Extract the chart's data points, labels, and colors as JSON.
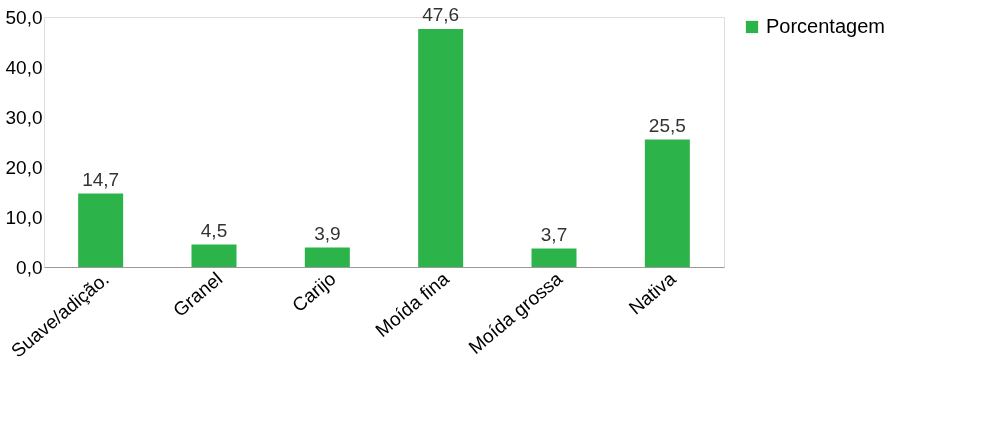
{
  "chart_data": {
    "type": "bar",
    "categories": [
      "Suave/adição.",
      "Granel",
      "Carijo",
      "Moída fina",
      "Moída grossa",
      "Nativa"
    ],
    "series": [
      {
        "name": "Porcentagem",
        "color": "#2cb34a",
        "values": [
          14.7,
          4.5,
          3.9,
          47.6,
          3.7,
          25.5
        ],
        "value_labels": [
          "14,7",
          "4,5",
          "3,9",
          "47,6",
          "3,7",
          "25,5"
        ]
      }
    ],
    "ylim": [
      0,
      50
    ],
    "yticks": [
      {
        "value": 0,
        "label": "0,0"
      },
      {
        "value": 10,
        "label": "10,0"
      },
      {
        "value": 20,
        "label": "20,0"
      },
      {
        "value": 30,
        "label": "30,0"
      },
      {
        "value": 40,
        "label": "40,0"
      },
      {
        "value": 50,
        "label": "50,0"
      }
    ],
    "grid": false,
    "legend": "right"
  }
}
